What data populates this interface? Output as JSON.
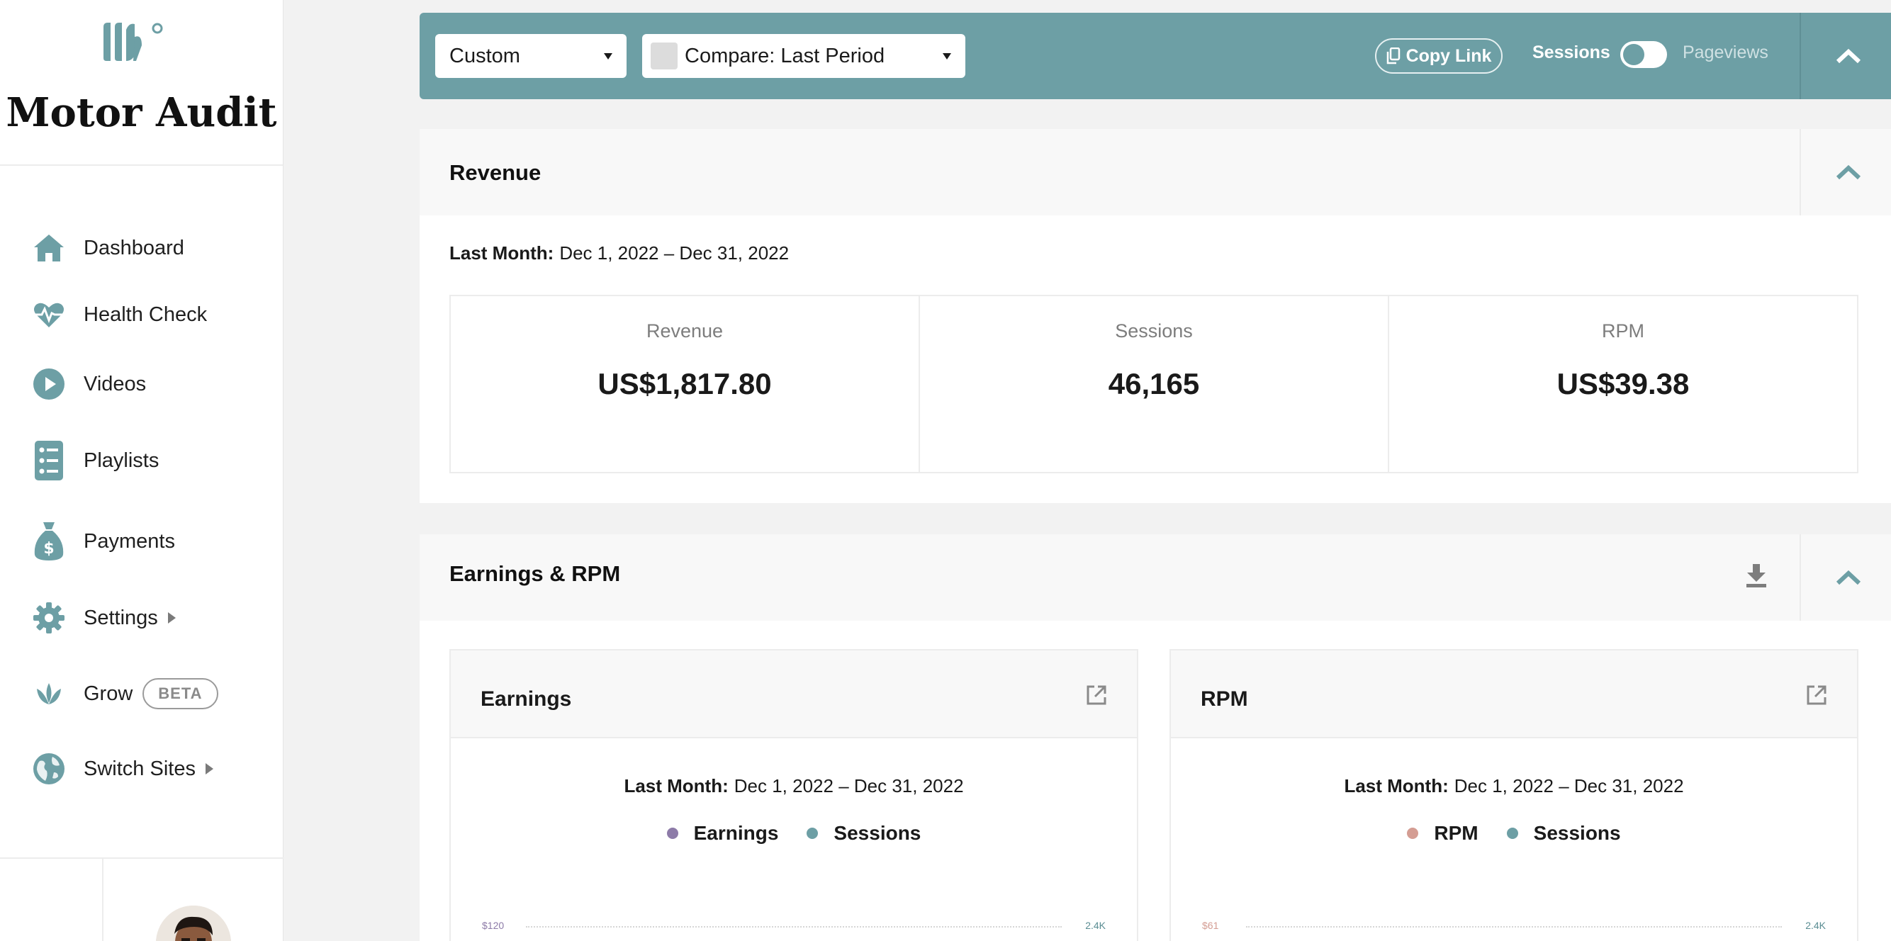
{
  "app": {
    "brand_name": "Motor Audit"
  },
  "sidebar": {
    "items": [
      {
        "label": "Dashboard",
        "icon": "home-icon"
      },
      {
        "label": "Health Check",
        "icon": "heartbeat-icon"
      },
      {
        "label": "Videos",
        "icon": "play-icon"
      },
      {
        "label": "Playlists",
        "icon": "list-icon"
      },
      {
        "label": "Payments",
        "icon": "money-bag-icon"
      },
      {
        "label": "Settings",
        "icon": "gear-icon"
      },
      {
        "label": "Grow",
        "icon": "leaf-icon",
        "badge": "BETA"
      },
      {
        "label": "Switch Sites",
        "icon": "globe-icon"
      }
    ]
  },
  "toolbar": {
    "range_select": "Custom",
    "compare_select": "Compare: Last Period",
    "copy_link": "Copy Link",
    "toggle_left": "Sessions",
    "toggle_right": "Pageviews"
  },
  "revenue": {
    "title": "Revenue",
    "period_label": "Last Month:",
    "period_range": "Dec 1, 2022 – Dec 31, 2022",
    "stats": [
      {
        "label": "Revenue",
        "value": "US$1,817.80"
      },
      {
        "label": "Sessions",
        "value": "46,165"
      },
      {
        "label": "RPM",
        "value": "US$39.38"
      }
    ]
  },
  "earnings_rpm": {
    "title": "Earnings & RPM",
    "earnings": {
      "title": "Earnings",
      "period_label": "Last Month:",
      "period_range": "Dec 1, 2022 – Dec 31, 2022",
      "legend": [
        "Earnings",
        "Sessions"
      ],
      "y_left_top": "$120",
      "y_right_top": "2.4K"
    },
    "rpm": {
      "title": "RPM",
      "period_label": "Last Month:",
      "period_range": "Dec 1, 2022 – Dec 31, 2022",
      "legend": [
        "RPM",
        "Sessions"
      ],
      "y_left_top": "$61",
      "y_right_top": "2.4K"
    }
  },
  "colors": {
    "accent": "#6d9fa5",
    "earnings_series": "#8d7ba8",
    "sessions_series": "#6d9fa5",
    "rpm_series": "#d49d93"
  }
}
